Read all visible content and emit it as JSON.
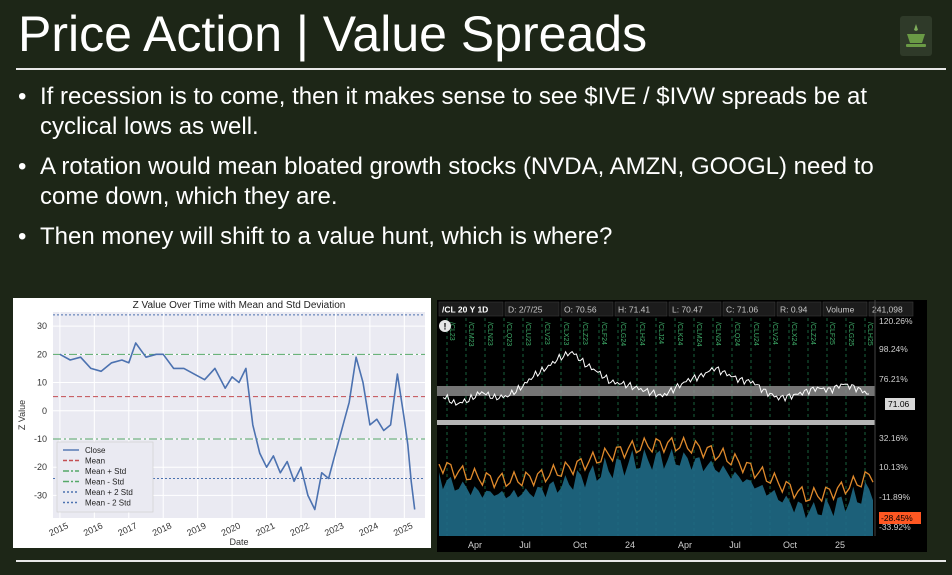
{
  "slide": {
    "title": "Price Action | Value Spreads",
    "bullets": [
      "If recession is to come, then it makes sense to see $IVE / $IVW spreads be at cyclical lows as well.",
      "A rotation would mean bloated growth stocks (NVDA, AMZN, GOOGL) need to come down, which they are.",
      "Then money will shift to a value hunt, which is where?"
    ]
  },
  "colors": {
    "background": "#1d2617",
    "close_line": "#4c72b0",
    "mean_line": "#c44e52",
    "std_line": "#55a868",
    "two_std_line": "#4c72b0",
    "price_line": "#ffffff",
    "orange_line": "#e08a2c",
    "teal_fill": "#1f6a86",
    "marker_badge": "#ff5722"
  },
  "chart_data": [
    {
      "type": "line",
      "title": "Z Value Over Time with Mean and Std Deviation",
      "xlabel": "Date",
      "ylabel": "Z Value",
      "x_ticks": [
        "2015",
        "2016",
        "2017",
        "2018",
        "2019",
        "2020",
        "2021",
        "2022",
        "2023",
        "2024",
        "2025"
      ],
      "y_ticks": [
        30,
        20,
        10,
        0,
        -10,
        -20,
        -30
      ],
      "ylim": [
        -38,
        35
      ],
      "xlim": [
        2014.8,
        2025.6
      ],
      "grid": true,
      "legend": {
        "placement": "lower-left",
        "entries": [
          "Close",
          "Mean",
          "Mean + Std",
          "Mean - Std",
          "Mean + 2 Std",
          "Mean - 2 Std"
        ]
      },
      "reference_lines": {
        "mean": 5,
        "mean_plus_std": 20,
        "mean_minus_std": -10,
        "mean_plus_2std": 34,
        "mean_minus_2std": -24
      },
      "series": [
        {
          "name": "Close",
          "x": [
            2015.0,
            2015.3,
            2015.6,
            2015.9,
            2016.2,
            2016.5,
            2016.8,
            2017.0,
            2017.2,
            2017.5,
            2017.8,
            2018.0,
            2018.3,
            2018.6,
            2018.9,
            2019.2,
            2019.5,
            2019.8,
            2020.0,
            2020.2,
            2020.4,
            2020.6,
            2020.8,
            2021.0,
            2021.2,
            2021.4,
            2021.6,
            2021.8,
            2022.0,
            2022.2,
            2022.4,
            2022.6,
            2022.8,
            2023.0,
            2023.2,
            2023.4,
            2023.6,
            2023.8,
            2024.0,
            2024.2,
            2024.4,
            2024.6,
            2024.8,
            2025.0,
            2025.1,
            2025.2,
            2025.3
          ],
          "values": [
            20,
            18,
            19,
            15,
            14,
            17,
            18,
            17,
            24,
            19,
            20,
            20,
            15,
            15,
            13,
            11,
            15,
            8,
            12,
            10,
            15,
            -5,
            -15,
            -20,
            -16,
            -22,
            -18,
            -25,
            -20,
            -30,
            -35,
            -22,
            -24,
            -15,
            -6,
            3,
            19,
            10,
            -5,
            -3,
            -7,
            -5,
            13,
            -3,
            -12,
            -25,
            -35
          ]
        }
      ]
    },
    {
      "type": "line",
      "header": {
        "symbol": "/CL 20 Y 1D",
        "date": "D: 2/7/25",
        "open": "O: 70.56",
        "high": "H: 71.41",
        "low": "L: 70.47",
        "close": "C: 71.06",
        "range": "R: 0.94",
        "volume_label": "Volume",
        "volume": "241,098"
      },
      "x_ticks": [
        "Apr",
        "Jul",
        "Oct",
        "24",
        "Apr",
        "Jul",
        "Oct",
        "25"
      ],
      "price_axis_labels": [
        "120.26%",
        "98.24%",
        "76.21%"
      ],
      "lower_axis_labels": [
        "32.16%",
        "10.13%",
        "-11.89%",
        "-33.92%"
      ],
      "current_price_badge": "71.06",
      "current_lower_badge": "-28.45%",
      "contract_labels": [
        "/CL23",
        "/CLM23",
        "/CLN23",
        "/CLQ23",
        "/CLU23",
        "/CLV23",
        "/CLX23",
        "/CLZ23",
        "/CLF24",
        "/CLG24",
        "/CLH24",
        "/CLJ24",
        "/CLK24",
        "/CLM24",
        "/CLN24",
        "/CLQ24",
        "/CLU24",
        "/CLV24",
        "/CLX24",
        "/CLZ24",
        "/CLF25",
        "/CLG25",
        "/CLH25"
      ],
      "series": [
        {
          "name": "/CL",
          "values": [
            70,
            66,
            68,
            72,
            69,
            70,
            74,
            80,
            84,
            89,
            92,
            86,
            82,
            77,
            76,
            74,
            72,
            70,
            74,
            78,
            80,
            84,
            81,
            78,
            77,
            72,
            69,
            70,
            72,
            74,
            73,
            76,
            74,
            71
          ]
        }
      ]
    }
  ]
}
